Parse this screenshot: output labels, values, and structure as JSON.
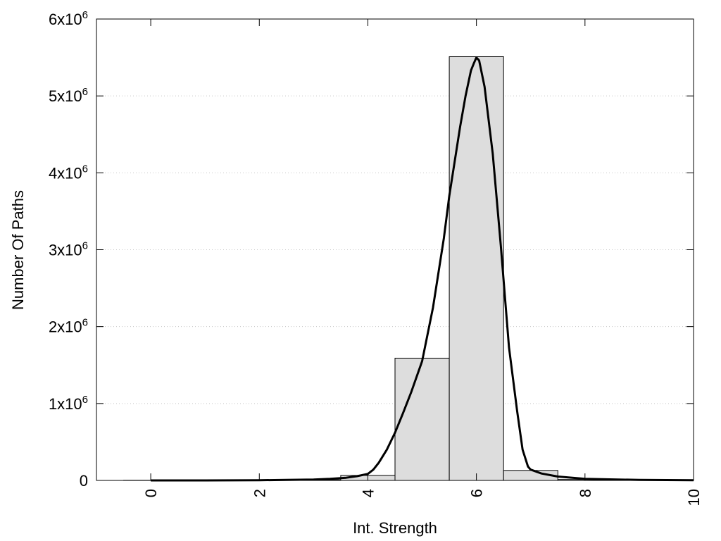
{
  "chart_data": {
    "type": "bar",
    "title": "",
    "xlabel": "Int. Strength",
    "ylabel": "Number Of Paths",
    "xlim": [
      -1,
      10
    ],
    "ylim": [
      0,
      6000000
    ],
    "grid": {
      "y": true,
      "x": false,
      "style": "dotted"
    },
    "legend": "none",
    "x_ticks": [
      {
        "value": 0,
        "label": "0"
      },
      {
        "value": 2,
        "label": "2"
      },
      {
        "value": 4,
        "label": "4"
      },
      {
        "value": 6,
        "label": "6"
      },
      {
        "value": 8,
        "label": "8"
      },
      {
        "value": 10,
        "label": "10"
      }
    ],
    "y_ticks": [
      {
        "value": 0,
        "mantissa": "0",
        "exp": ""
      },
      {
        "value": 1000000,
        "mantissa": "1x10",
        "exp": "6"
      },
      {
        "value": 2000000,
        "mantissa": "2x10",
        "exp": "6"
      },
      {
        "value": 3000000,
        "mantissa": "3x10",
        "exp": "6"
      },
      {
        "value": 4000000,
        "mantissa": "4x10",
        "exp": "6"
      },
      {
        "value": 5000000,
        "mantissa": "5x10",
        "exp": "6"
      },
      {
        "value": 6000000,
        "mantissa": "6x10",
        "exp": "6"
      }
    ],
    "bars": {
      "bin_width": 1,
      "centers": [
        0,
        1,
        2,
        3,
        4,
        5,
        6,
        7,
        8,
        9,
        10
      ],
      "values": [
        2000,
        2000,
        2000,
        8000,
        65000,
        1590000,
        5510000,
        130000,
        12000,
        3000,
        1000
      ]
    },
    "curve": {
      "x": [
        0,
        1,
        2,
        2.5,
        3,
        3.3,
        3.6,
        3.8,
        4.0,
        4.1,
        4.2,
        4.35,
        4.5,
        4.65,
        4.8,
        5.0,
        5.2,
        5.4,
        5.5,
        5.6,
        5.7,
        5.8,
        5.9,
        5.95,
        6.0,
        6.05,
        6.15,
        6.3,
        6.45,
        6.6,
        6.75,
        6.85,
        6.95,
        7.0,
        7.2,
        7.5,
        8.0,
        9.0,
        10.0
      ],
      "y": [
        0,
        0,
        3000,
        6000,
        12000,
        20000,
        35000,
        55000,
        85000,
        140000,
        230000,
        400000,
        620000,
        880000,
        1150000,
        1550000,
        2250000,
        3150000,
        3700000,
        4150000,
        4600000,
        5000000,
        5330000,
        5420000,
        5500000,
        5460000,
        5120000,
        4250000,
        3050000,
        1730000,
        900000,
        400000,
        180000,
        140000,
        90000,
        50000,
        20000,
        6000,
        2000
      ]
    }
  }
}
